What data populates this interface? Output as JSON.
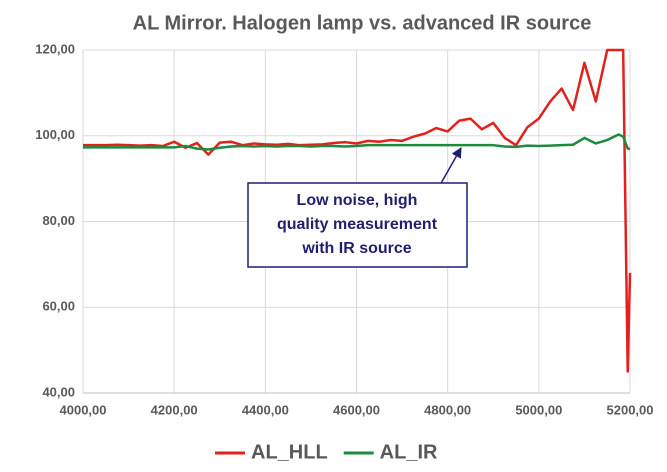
{
  "chart_data": {
    "type": "line",
    "title": "AL Mirror. Halogen lamp vs. advanced IR source",
    "x": [
      4000,
      4025,
      4050,
      4075,
      4100,
      4125,
      4150,
      4175,
      4200,
      4225,
      4250,
      4275,
      4300,
      4325,
      4350,
      4375,
      4400,
      4425,
      4450,
      4475,
      4500,
      4525,
      4550,
      4575,
      4600,
      4625,
      4650,
      4675,
      4700,
      4725,
      4750,
      4775,
      4800,
      4825,
      4850,
      4875,
      4900,
      4925,
      4950,
      4975,
      5000,
      5025,
      5050,
      5075,
      5100,
      5125,
      5150,
      5175,
      5185,
      5195,
      5200
    ],
    "series": [
      {
        "name": "AL_HLL",
        "color": "#e3211c",
        "values": [
          97.8,
          97.8,
          97.8,
          97.9,
          97.8,
          97.7,
          97.8,
          97.6,
          98.6,
          97.2,
          98.3,
          95.6,
          98.4,
          98.6,
          97.8,
          98.2,
          98.0,
          97.9,
          98.1,
          97.8,
          97.9,
          98.0,
          98.3,
          98.5,
          98.2,
          98.8,
          98.6,
          99.0,
          98.8,
          99.8,
          100.5,
          101.8,
          101.0,
          103.5,
          104.0,
          101.5,
          103.0,
          99.5,
          97.8,
          102.0,
          104.0,
          108,
          111,
          106,
          117,
          108,
          120,
          120,
          120,
          45,
          68
        ]
      },
      {
        "name": "AL_IR",
        "color": "#1e8a3e",
        "values": [
          97.3,
          97.3,
          97.3,
          97.3,
          97.3,
          97.3,
          97.3,
          97.3,
          97.3,
          97.6,
          97.0,
          96.8,
          97.2,
          97.5,
          97.6,
          97.5,
          97.6,
          97.5,
          97.6,
          97.6,
          97.5,
          97.6,
          97.6,
          97.5,
          97.6,
          97.8,
          97.8,
          97.8,
          97.8,
          97.8,
          97.8,
          97.8,
          97.8,
          97.8,
          97.8,
          97.8,
          97.8,
          97.5,
          97.4,
          97.7,
          97.6,
          97.7,
          97.8,
          97.9,
          99.5,
          98.2,
          99.0,
          100.3,
          99.8,
          97.0,
          96.9
        ]
      }
    ],
    "xlim": [
      4000,
      5200
    ],
    "xticks": [
      {
        "value": 4000,
        "label": "4000,00"
      },
      {
        "value": 4200,
        "label": "4200,00"
      },
      {
        "value": 4400,
        "label": "4400,00"
      },
      {
        "value": 4600,
        "label": "4600,00"
      },
      {
        "value": 4800,
        "label": "4800,00"
      },
      {
        "value": 5000,
        "label": "5000,00"
      },
      {
        "value": 5200,
        "label": "5200,00"
      }
    ],
    "ylim": [
      40,
      120
    ],
    "yticks": [
      {
        "value": 40,
        "label": "40,00"
      },
      {
        "value": 60,
        "label": "60,00"
      },
      {
        "value": 80,
        "label": "80,00"
      },
      {
        "value": 100,
        "label": "100,00"
      },
      {
        "value": 120,
        "label": "120,00"
      }
    ],
    "grid": true,
    "legend": "bottom",
    "annotation": [
      "Low noise, high",
      "quality measurement",
      "with IR source"
    ]
  }
}
